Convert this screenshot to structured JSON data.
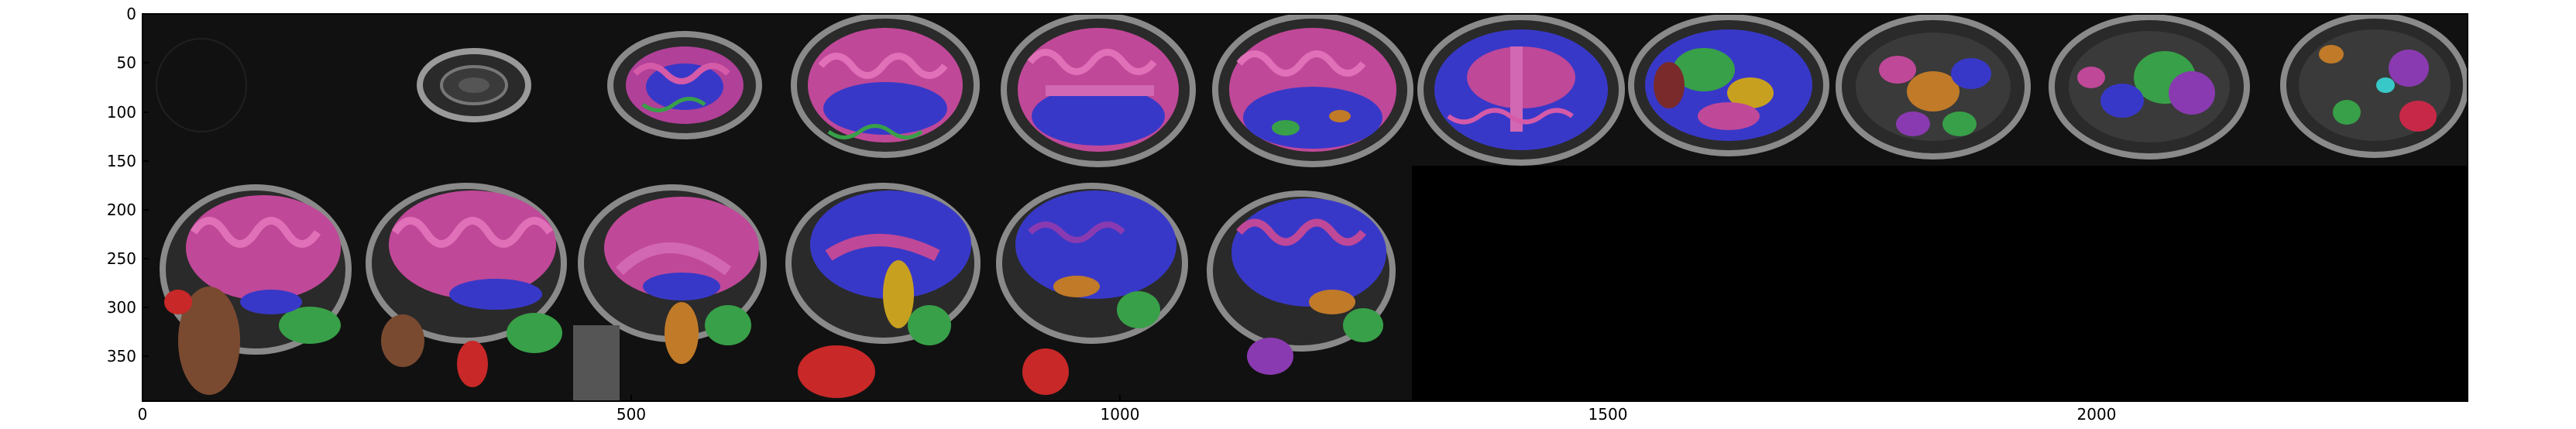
{
  "figure": {
    "x_axis": {
      "range": [
        0,
        2380
      ],
      "ticks": [
        "0",
        "500",
        "1000",
        "1500",
        "2000"
      ]
    },
    "y_axis": {
      "range": [
        0,
        396
      ],
      "inverted": true,
      "ticks": [
        "0",
        "50",
        "100",
        "150",
        "200",
        "250",
        "300",
        "350"
      ]
    },
    "colors": {
      "background_panel": "#111111",
      "empty_region": "#000000",
      "skull_gray": "#8a8a8a",
      "cortex_pink": "#d04fa0",
      "white_matter_blue": "#3838c8",
      "accent_green": "#38a048",
      "accent_orange": "#c07a28",
      "accent_red": "#c82828"
    },
    "rows": [
      {
        "name": "axial-slices",
        "count": 11
      },
      {
        "name": "sagittal-slices",
        "count": 6
      }
    ]
  }
}
